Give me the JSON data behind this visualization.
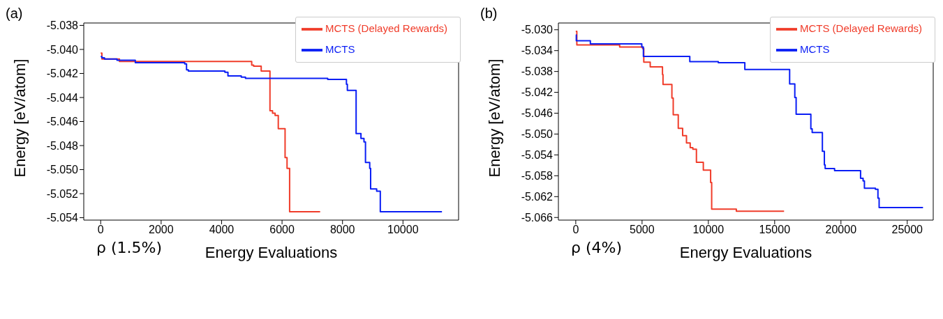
{
  "chart_data": [
    {
      "type": "step",
      "title": "(a)",
      "xlabel": "Energy Evaluations",
      "ylabel": "Energy [eV/atom]",
      "xlim": [
        -560,
        11840
      ],
      "ylim": [
        -5.0542,
        -5.0378
      ],
      "xticks": [
        0,
        2000,
        4000,
        6000,
        8000,
        10000
      ],
      "yticks": [
        -5.054,
        -5.052,
        {
          "value": -5.05,
          "label": "-5.050"
        },
        -5.048,
        -5.046,
        -5.044,
        -5.042,
        {
          "value": -5.04,
          "label": "-5.040"
        },
        -5.038
      ],
      "legend": "top right",
      "grid": false,
      "annotations": [
        "ρ (1.5%)"
      ],
      "series": [
        {
          "name": "MCTS (Delayed Rewards)",
          "color": "#f03c2a",
          "x": [
            0,
            40,
            620,
            4996,
            5060,
            5310,
            5600,
            5685,
            5770,
            5875,
            6100,
            6165,
            6250,
            7260
          ],
          "values": [
            -5.0403,
            -5.0408,
            -5.041,
            -5.0413,
            -5.0414,
            -5.0418,
            -5.0451,
            -5.0453,
            -5.0455,
            -5.0466,
            -5.049,
            -5.0499,
            -5.0535,
            -5.0535
          ]
        },
        {
          "name": "MCTS",
          "color": "#0a1ef5",
          "x": [
            0,
            40,
            125,
            540,
            1145,
            2780,
            2840,
            2900,
            3690,
            4110,
            4210,
            4440,
            4650,
            4790,
            5435,
            7510,
            8090,
            8130,
            8160,
            8450,
            8610,
            8710,
            8760,
            8900,
            8930,
            9130,
            9250,
            11290
          ],
          "values": [
            -5.0406,
            -5.0407,
            -5.0408,
            -5.0409,
            -5.0411,
            -5.0412,
            -5.0417,
            -5.0418,
            -5.0418,
            -5.0419,
            -5.0422,
            -5.0422,
            -5.0423,
            -5.0424,
            -5.0424,
            -5.0425,
            -5.0425,
            -5.0429,
            -5.0434,
            -5.047,
            -5.0474,
            -5.0477,
            -5.0494,
            -5.0499,
            -5.0516,
            -5.0518,
            -5.0535,
            -5.0535
          ]
        }
      ]
    },
    {
      "type": "step",
      "title": "(b)",
      "xlabel": "Energy Evaluations",
      "ylabel": "Energy [eV/atom]",
      "xlim": [
        -1310,
        26960
      ],
      "ylim": [
        -5.0665,
        -5.0287
      ],
      "xticks": [
        0,
        5000,
        10000,
        15000,
        20000,
        25000
      ],
      "yticks": [
        -5.066,
        -5.062,
        -5.058,
        -5.054,
        {
          "value": -5.05,
          "label": "-5.050"
        },
        -5.046,
        -5.042,
        -5.038,
        -5.034,
        {
          "value": -5.03,
          "label": "-5.030"
        }
      ],
      "legend": "top right",
      "grid": false,
      "annotations": [
        "ρ (4%)"
      ],
      "series": [
        {
          "name": "MCTS (Delayed Rewards)",
          "color": "#f03c2a",
          "x": [
            0,
            80,
            3310,
            5040,
            5130,
            5615,
            6540,
            6580,
            7250,
            7350,
            7730,
            8060,
            8350,
            8630,
            8830,
            9100,
            9620,
            10170,
            10250,
            12110,
            15710
          ],
          "values": [
            -5.0303,
            -5.0329,
            -5.0333,
            -5.0336,
            -5.0362,
            -5.0371,
            -5.0386,
            -5.0405,
            -5.0431,
            -5.0463,
            -5.0489,
            -5.0503,
            -5.0517,
            -5.0526,
            -5.0529,
            -5.0554,
            -5.0569,
            -5.0593,
            -5.0644,
            -5.0648,
            -5.0648
          ]
        },
        {
          "name": "MCTS",
          "color": "#0a1ef5",
          "x": [
            0,
            40,
            520,
            1100,
            4980,
            5100,
            8600,
            10750,
            12750,
            16130,
            16520,
            16620,
            17730,
            17830,
            18600,
            18750,
            18810,
            19520,
            21480,
            21670,
            21770,
            22600,
            22790,
            22880,
            26190
          ],
          "values": [
            -5.031,
            -5.0321,
            -5.0321,
            -5.0327,
            -5.0333,
            -5.0351,
            -5.0361,
            -5.0363,
            -5.0376,
            -5.0404,
            -5.043,
            -5.0462,
            -5.049,
            -5.0497,
            -5.0533,
            -5.0559,
            -5.0566,
            -5.057,
            -5.0585,
            -5.059,
            -5.0604,
            -5.0606,
            -5.0623,
            -5.0641,
            -5.0641
          ]
        }
      ]
    }
  ]
}
